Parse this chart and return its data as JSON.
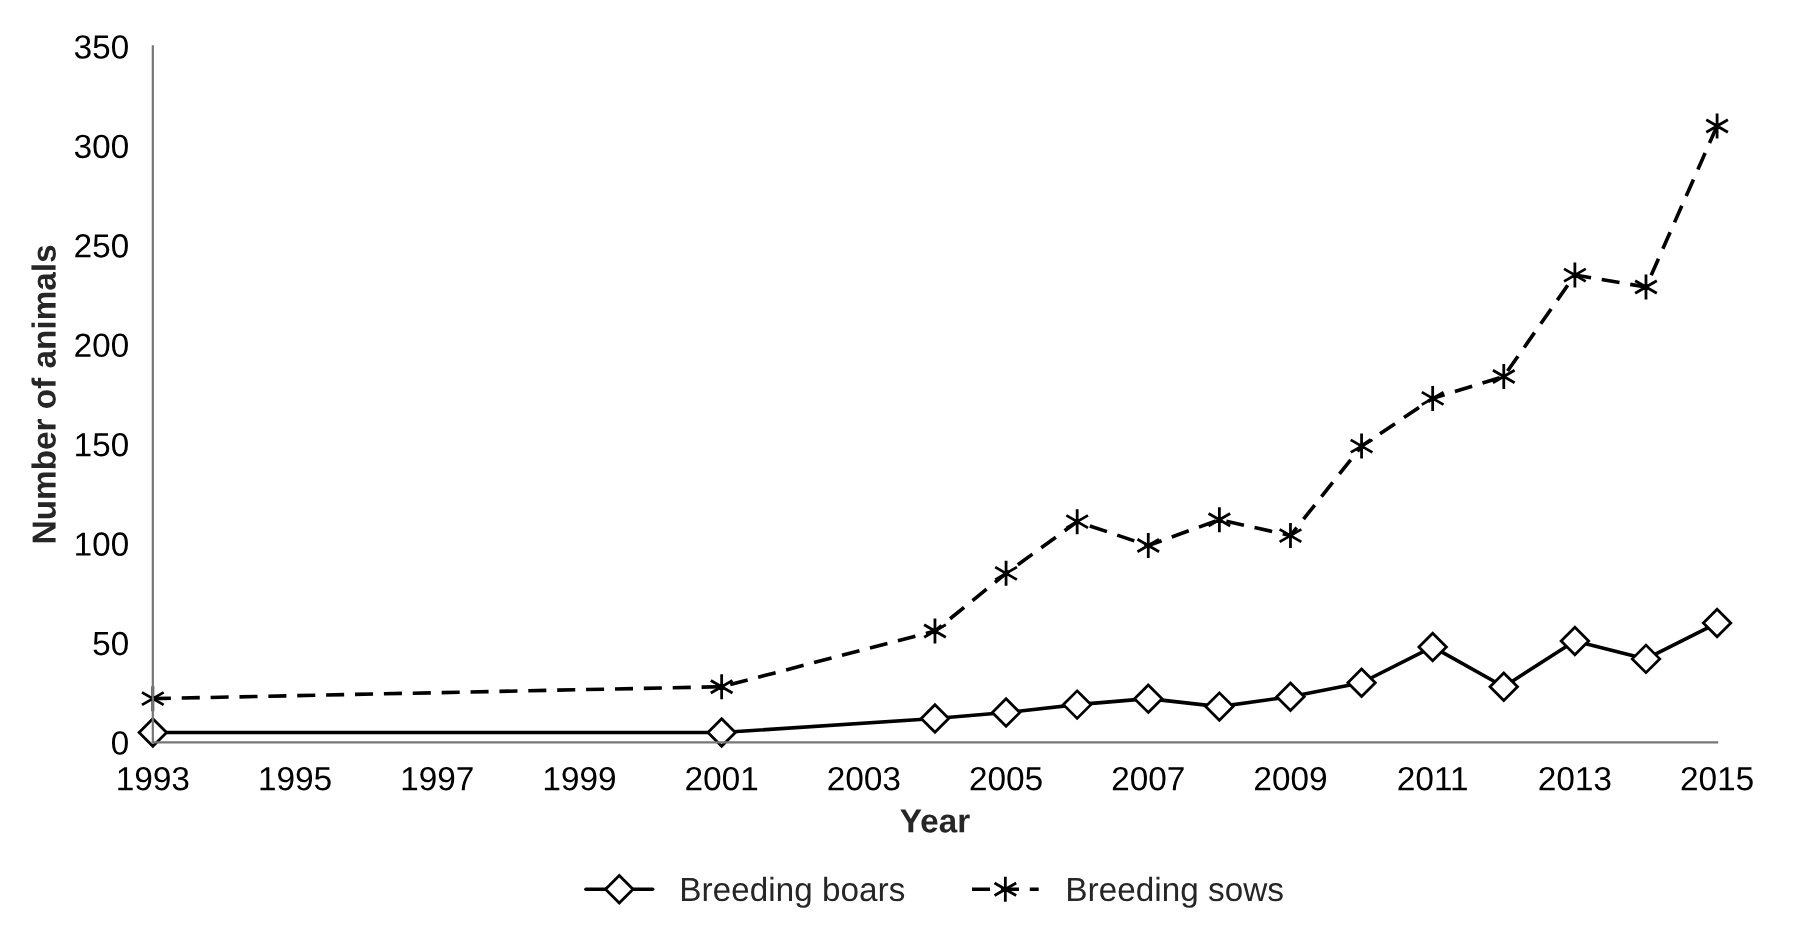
{
  "chart_data": {
    "type": "line",
    "xlabel": "Year",
    "ylabel": "Number of animals",
    "x": [
      1993,
      2001,
      2004,
      2005,
      2006,
      2007,
      2008,
      2009,
      2010,
      2011,
      2012,
      2013,
      2014,
      2015
    ],
    "series": [
      {
        "name": "Breeding boars",
        "color": "#000000",
        "marker": "diamond",
        "line_style": "solid",
        "values": [
          5,
          5,
          12,
          15,
          19,
          22,
          18,
          23,
          30,
          48,
          28,
          51,
          42,
          60
        ]
      },
      {
        "name": "Breeding sows",
        "color": "#000000",
        "marker": "cross",
        "line_style": "dashed",
        "values": [
          22,
          28,
          56,
          85,
          111,
          99,
          112,
          104,
          149,
          173,
          184,
          235,
          229,
          310
        ]
      }
    ],
    "xlim": [
      1993,
      2015
    ],
    "xticks": [
      1993,
      1995,
      1997,
      1999,
      2001,
      2003,
      2005,
      2007,
      2009,
      2011,
      2013,
      2015
    ],
    "ylim": [
      0,
      350
    ],
    "yticks": [
      0,
      50,
      100,
      150,
      200,
      250,
      300,
      350
    ],
    "grid": false,
    "legend": "bottom"
  }
}
